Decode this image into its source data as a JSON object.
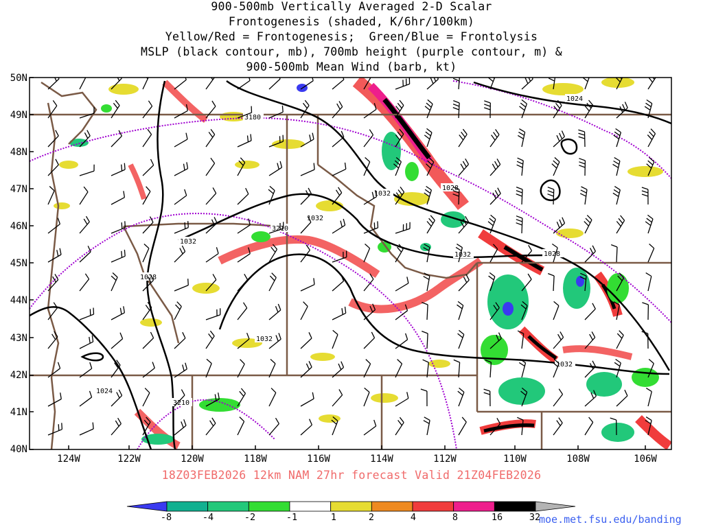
{
  "title_lines": [
    "900-500mb Vertically Averaged 2-D Scalar",
    "Frontogenesis (shaded, K/6hr/100km)",
    "Yellow/Red = Frontogenesis;  Green/Blue = Frontolysis",
    "MSLP (black contour, mb), 700mb height (purple contour, m) &",
    "900-500mb Mean Wind (barb, kt)"
  ],
  "lat_labels": [
    "50N",
    "49N",
    "48N",
    "47N",
    "46N",
    "45N",
    "44N",
    "43N",
    "42N",
    "41N",
    "40N"
  ],
  "lon_labels": [
    "124W",
    "122W",
    "120W",
    "118W",
    "116W",
    "114W",
    "112W",
    "110W",
    "108W",
    "106W"
  ],
  "valid_line": "18Z03FEB2026 12km NAM 27hr forecast Valid 21Z04FEB2026",
  "colorbar": {
    "tick_labels": [
      "-8",
      "-4",
      "-2",
      "-1",
      "1",
      "2",
      "4",
      "8",
      "16",
      "32"
    ],
    "colors": [
      "#3a3af0",
      "#11b090",
      "#22c87a",
      "#33dd33",
      "#ffffff",
      "#e6dc32",
      "#ee8a20",
      "#f03c3c",
      "#ee1e8c",
      "#000000",
      "#b4b4b4"
    ]
  },
  "contour_labels": {
    "mslp": [
      "1024",
      "1028",
      "1032",
      "1032",
      "1028",
      "1032",
      "1028",
      "1032",
      "1032",
      "1032",
      "1024"
    ],
    "height": [
      "3180",
      "3210",
      "3210"
    ]
  },
  "colors": {
    "mslp": "#000000",
    "height": "#a000d0",
    "borders": "#7a5a46",
    "frontogenesis": "#f03c3c",
    "frontolysis": "#22c87a"
  },
  "credit": "moe.met.fsu.edu/banding"
}
